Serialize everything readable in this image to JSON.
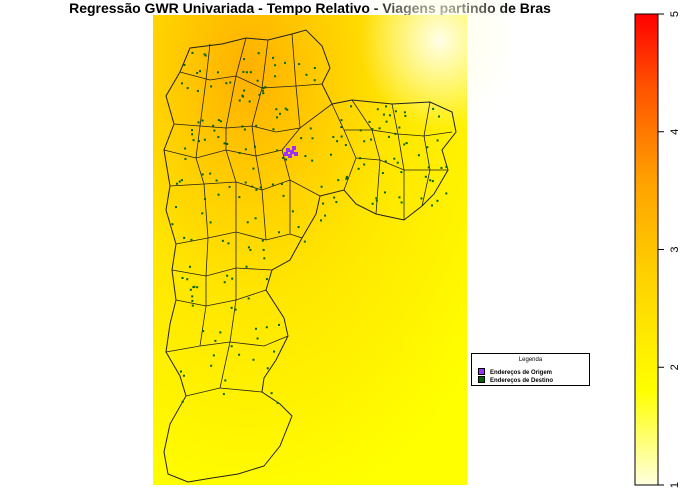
{
  "title": "Regressão GWR Univariada - Tempo Relativo - Viagens partindo de Bras",
  "legend": {
    "title": "Legenda",
    "items": [
      {
        "label": "Endereços de Origem",
        "color": "#9b30ff"
      },
      {
        "label": "Endereços de Destino",
        "color": "#006400"
      }
    ]
  },
  "colorbar": {
    "min": 1,
    "max": 5,
    "ticks": [
      "1",
      "2",
      "3",
      "4",
      "5"
    ],
    "gradient": [
      "#ffffe0",
      "#ffff00",
      "#ffd000",
      "#ffa000",
      "#ff5000",
      "#ff0000"
    ]
  },
  "colors": {
    "surface_low": "#ffff60",
    "surface_mid": "#ffe400",
    "surface_high": "#ffb000",
    "boundary": "#222222",
    "origin": "#9b30ff",
    "destination": "#006400"
  }
}
